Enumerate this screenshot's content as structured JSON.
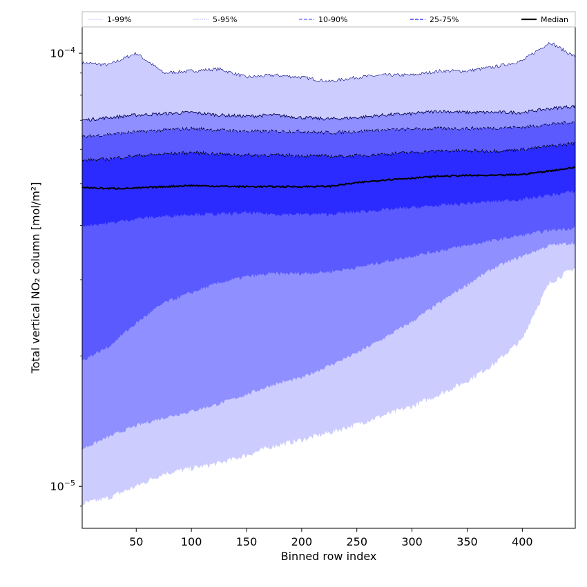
{
  "chart_data": {
    "type": "area",
    "title": "",
    "xlabel": "Binned row index",
    "ylabel": "Total vertical NO₂ column [mol/m²]",
    "xlim": [
      1,
      448
    ],
    "ylim": [
      8e-06,
      0.000115
    ],
    "yscale": "log",
    "x_ticks": [
      50,
      100,
      150,
      200,
      250,
      300,
      350,
      400
    ],
    "y_ticks": [
      {
        "value": 0.0001,
        "label_base": "10",
        "label_exp": "−4"
      },
      {
        "value": 1e-05,
        "label_base": "10",
        "label_exp": "−5"
      }
    ],
    "y_minor_ticks": [
      9e-06,
      2e-05,
      3e-05,
      4e-05,
      5e-05,
      6e-05,
      7e-05,
      8e-05,
      9e-05
    ],
    "x": [
      1,
      25,
      50,
      75,
      100,
      125,
      150,
      175,
      200,
      225,
      250,
      275,
      300,
      325,
      350,
      375,
      400,
      425,
      448
    ],
    "bands": [
      {
        "name": "1-99%",
        "color": "#ccccff",
        "line_color": "#000080",
        "lower": [
          9.1e-06,
          9.4e-06,
          1e-05,
          1.07e-05,
          1.1e-05,
          1.13e-05,
          1.18e-05,
          1.24e-05,
          1.28e-05,
          1.33e-05,
          1.39e-05,
          1.46e-05,
          1.53e-05,
          1.63e-05,
          1.75e-05,
          1.92e-05,
          2.18e-05,
          2.95e-05,
          3.2e-05
        ],
        "upper": [
          9.5e-05,
          9.4e-05,
          0.0001,
          9e-05,
          9.1e-05,
          9.2e-05,
          8.8e-05,
          8.9e-05,
          8.8e-05,
          8.6e-05,
          8.8e-05,
          8.9e-05,
          8.9e-05,
          9.1e-05,
          9.1e-05,
          9.3e-05,
          9.6e-05,
          0.000106,
          9.8e-05
        ]
      },
      {
        "name": "5-95%",
        "color": "#8f8fff",
        "line_color": "#000050",
        "lower": [
          1.22e-05,
          1.3e-05,
          1.38e-05,
          1.44e-05,
          1.49e-05,
          1.55e-05,
          1.63e-05,
          1.72e-05,
          1.78e-05,
          1.9e-05,
          2.03e-05,
          2.2e-05,
          2.4e-05,
          2.65e-05,
          2.92e-05,
          3.2e-05,
          3.4e-05,
          3.6e-05,
          3.65e-05
        ]
      },
      {
        "name": "10-90%",
        "color": "#5a5aff",
        "line_color": "#000030",
        "lower": [
          1.95e-05,
          2.1e-05,
          2.38e-05,
          2.65e-05,
          2.8e-05,
          2.95e-05,
          3.05e-05,
          3.1e-05,
          3.1e-05,
          3.13e-05,
          3.2e-05,
          3.3e-05,
          3.4e-05,
          3.5e-05,
          3.6e-05,
          3.7e-05,
          3.8e-05,
          3.9e-05,
          3.95e-05
        ]
      },
      {
        "name": "25-75%",
        "color": "#2b2bff",
        "line_color": "#000000",
        "lower": [
          4e-05,
          4.05e-05,
          4.15e-05,
          4.2e-05,
          4.25e-05,
          4.25e-05,
          4.28e-05,
          4.25e-05,
          4.25e-05,
          4.25e-05,
          4.3e-05,
          4.35e-05,
          4.4e-05,
          4.45e-05,
          4.5e-05,
          4.55e-05,
          4.6e-05,
          4.7e-05,
          4.8e-05
        ]
      }
    ],
    "upper_lines": [
      {
        "name": "5-95%",
        "values": [
          7e-05,
          7.1e-05,
          7.2e-05,
          7.25e-05,
          7.3e-05,
          7.2e-05,
          7.15e-05,
          7.2e-05,
          7.1e-05,
          7.05e-05,
          7.1e-05,
          7.2e-05,
          7.25e-05,
          7.35e-05,
          7.3e-05,
          7.3e-05,
          7.3e-05,
          7.45e-05,
          7.55e-05
        ]
      },
      {
        "name": "10-90%",
        "values": [
          6.4e-05,
          6.5e-05,
          6.58e-05,
          6.65e-05,
          6.7e-05,
          6.65e-05,
          6.6e-05,
          6.6e-05,
          6.6e-05,
          6.55e-05,
          6.6e-05,
          6.65e-05,
          6.68e-05,
          6.7e-05,
          6.7e-05,
          6.72e-05,
          6.75e-05,
          6.85e-05,
          6.95e-05
        ]
      },
      {
        "name": "25-75%",
        "values": [
          5.65e-05,
          5.7e-05,
          5.8e-05,
          5.85e-05,
          5.9e-05,
          5.85e-05,
          5.82e-05,
          5.82e-05,
          5.8e-05,
          5.78e-05,
          5.8e-05,
          5.85e-05,
          5.9e-05,
          5.95e-05,
          5.95e-05,
          5.95e-05,
          6e-05,
          6.1e-05,
          6.2e-05
        ]
      }
    ],
    "median": {
      "name": "Median",
      "values": [
        4.9e-05,
        4.87e-05,
        4.88e-05,
        4.92e-05,
        4.95e-05,
        4.93e-05,
        4.92e-05,
        4.92e-05,
        4.92e-05,
        4.93e-05,
        5.02e-05,
        5.1e-05,
        5.15e-05,
        5.2e-05,
        5.22e-05,
        5.22e-05,
        5.25e-05,
        5.35e-05,
        5.45e-05
      ]
    },
    "legend": {
      "position": "top",
      "entries": [
        {
          "label": "1-99%",
          "style": "thin",
          "color": "#c8c8ff"
        },
        {
          "label": "5-95%",
          "style": "thin-dotted",
          "color": "#a0a0ff"
        },
        {
          "label": "10-90%",
          "style": "dashed",
          "color": "#7a7aff"
        },
        {
          "label": "25-75%",
          "style": "dashed",
          "color": "#4040ff"
        },
        {
          "label": "Median",
          "style": "solid-thick",
          "color": "#000000"
        }
      ]
    }
  }
}
